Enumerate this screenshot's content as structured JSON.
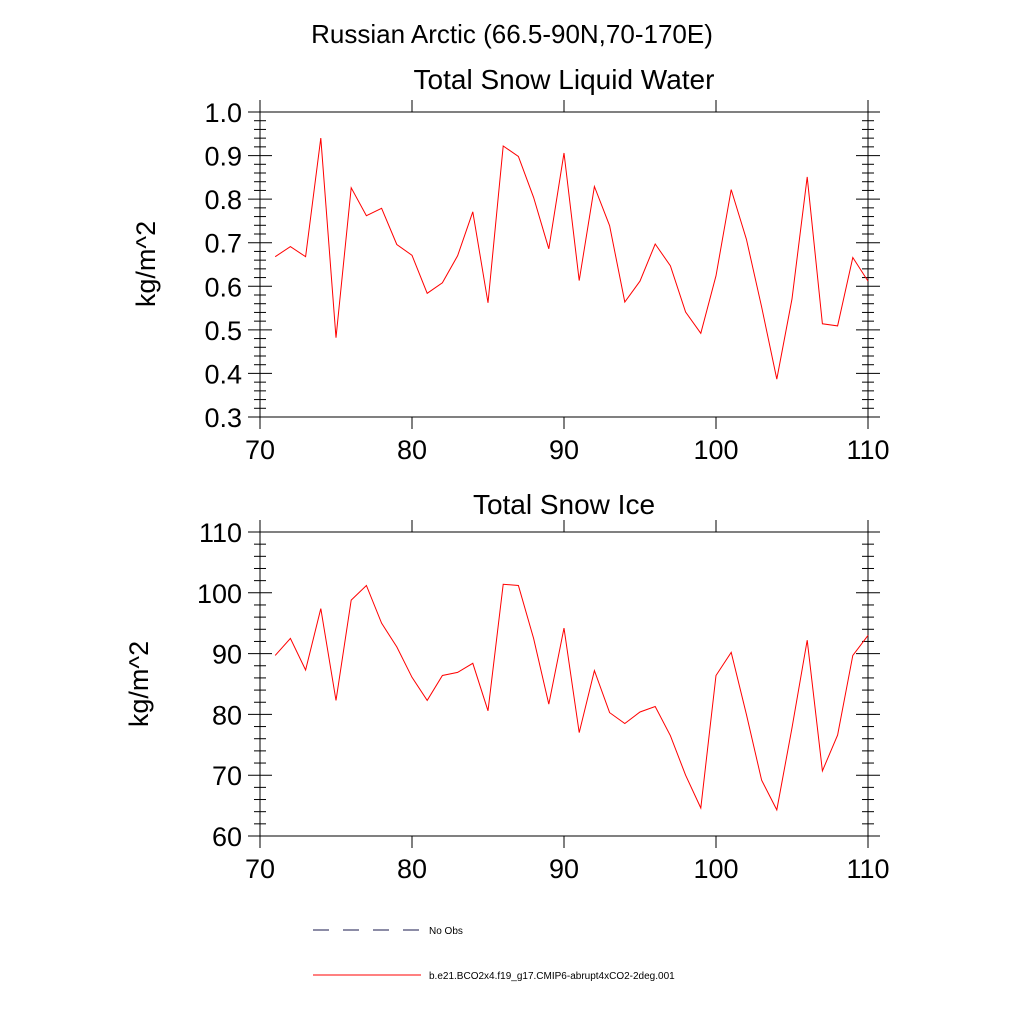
{
  "figure_title": "Russian Arctic (66.5-90N,70-170E)",
  "chart_data": [
    {
      "type": "line",
      "title": "Total Snow Liquid Water",
      "xlabel": "",
      "ylabel": "kg/m^2",
      "xlim": [
        70,
        110
      ],
      "ylim": [
        0.3,
        1.0
      ],
      "xticks": [
        70,
        80,
        90,
        100,
        110
      ],
      "yticks": [
        0.3,
        0.4,
        0.5,
        0.6,
        0.7,
        0.8,
        0.9,
        1.0
      ],
      "ytick_labels": [
        "0.3",
        "0.4",
        "0.5",
        "0.6",
        "0.7",
        "0.8",
        "0.9",
        "1.0"
      ],
      "x": [
        71,
        72,
        73,
        74,
        75,
        76,
        77,
        78,
        79,
        80,
        81,
        82,
        83,
        84,
        85,
        86,
        87,
        88,
        89,
        90,
        91,
        92,
        93,
        94,
        95,
        96,
        97,
        98,
        99,
        100,
        101,
        102,
        103,
        104,
        105,
        106,
        107,
        108,
        109,
        110
      ],
      "series": [
        {
          "name": "b.e21.BCO2x4.f19_g17.CMIP6-abrupt4xCO2-2deg.001",
          "color": "#ff0000",
          "values": [
            0.668,
            0.691,
            0.668,
            0.94,
            0.482,
            0.826,
            0.762,
            0.779,
            0.696,
            0.671,
            0.584,
            0.608,
            0.67,
            0.771,
            0.562,
            0.922,
            0.898,
            0.804,
            0.686,
            0.906,
            0.613,
            0.829,
            0.739,
            0.564,
            0.612,
            0.697,
            0.647,
            0.541,
            0.492,
            0.624,
            0.822,
            0.708,
            0.553,
            0.387,
            0.571,
            0.851,
            0.514,
            0.509,
            0.666,
            0.612
          ]
        }
      ]
    },
    {
      "type": "line",
      "title": "Total Snow Ice",
      "xlabel": "",
      "ylabel": "kg/m^2",
      "xlim": [
        70,
        110
      ],
      "ylim": [
        60,
        110
      ],
      "xticks": [
        70,
        80,
        90,
        100,
        110
      ],
      "yticks": [
        60,
        70,
        80,
        90,
        100,
        110
      ],
      "ytick_labels": [
        "60",
        "70",
        "80",
        "90",
        "100",
        "110"
      ],
      "x": [
        71,
        72,
        73,
        74,
        75,
        76,
        77,
        78,
        79,
        80,
        81,
        82,
        83,
        84,
        85,
        86,
        87,
        88,
        89,
        90,
        91,
        92,
        93,
        94,
        95,
        96,
        97,
        98,
        99,
        100,
        101,
        102,
        103,
        104,
        105,
        106,
        107,
        108,
        109,
        110
      ],
      "series": [
        {
          "name": "b.e21.BCO2x4.f19_g17.CMIP6-abrupt4xCO2-2deg.001",
          "color": "#ff0000",
          "values": [
            89.7,
            92.5,
            87.3,
            97.4,
            82.3,
            98.8,
            101.2,
            95.0,
            91.1,
            86.1,
            82.3,
            86.4,
            86.9,
            88.4,
            80.6,
            101.4,
            101.2,
            92.5,
            81.7,
            94.2,
            77.0,
            87.2,
            80.3,
            78.5,
            80.4,
            81.3,
            76.5,
            70.0,
            64.6,
            86.4,
            90.2,
            80.0,
            69.2,
            64.3,
            77.8,
            92.2,
            70.7,
            76.6,
            89.7,
            93.0
          ]
        }
      ]
    }
  ],
  "legend": [
    {
      "label": "No Obs",
      "style": "dashed",
      "color": "#1a1a4d"
    },
    {
      "label": "b.e21.BCO2x4.f19_g17.CMIP6-abrupt4xCO2-2deg.001",
      "style": "solid",
      "color": "#ff0000"
    }
  ]
}
